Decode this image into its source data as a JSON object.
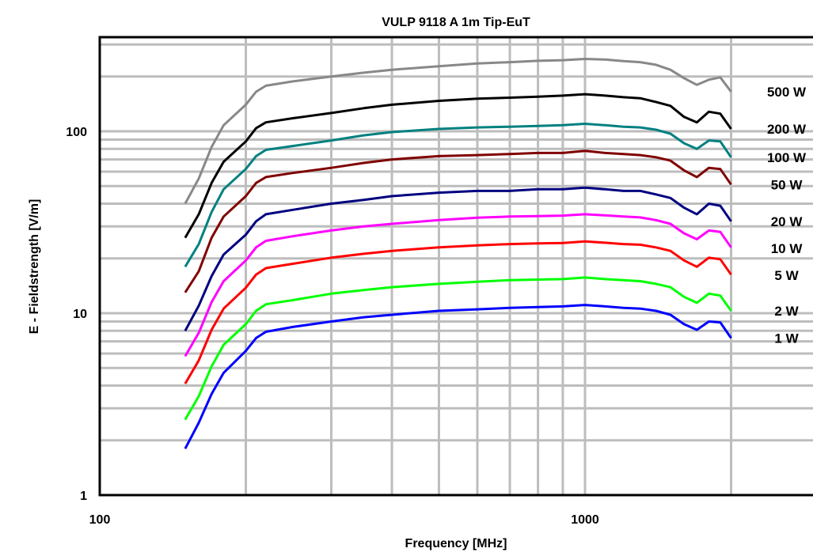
{
  "chart_data": {
    "type": "line",
    "title": "VULP 9118 A 1m Tip-EuT",
    "xlabel": "Frequency [MHz]",
    "ylabel": "E - Fieldstrength [V/m]",
    "x_scale": "log",
    "y_scale": "log",
    "xlim": [
      100,
      3000
    ],
    "ylim": [
      1,
      300
    ],
    "x_tick_labels": [
      "100",
      "1000"
    ],
    "y_tick_labels": [
      "1",
      "10",
      "100"
    ],
    "grid": true,
    "legend": "right, labels next to line ends",
    "x": [
      150,
      160,
      170,
      180,
      200,
      210,
      220,
      250,
      300,
      350,
      400,
      500,
      600,
      700,
      800,
      900,
      1000,
      1100,
      1200,
      1300,
      1400,
      1500,
      1600,
      1700,
      1800,
      1900,
      2000
    ],
    "series": [
      {
        "name": "500 W",
        "color": "#888888",
        "values": [
          40,
          55,
          82,
          108,
          140,
          165,
          178,
          188,
          200,
          210,
          218,
          228,
          236,
          240,
          244,
          246,
          250,
          248,
          243,
          240,
          232,
          218,
          196,
          180,
          192,
          198,
          165
        ]
      },
      {
        "name": "200 W",
        "color": "#000000",
        "values": [
          26,
          35,
          52,
          68,
          88,
          104,
          112,
          118,
          126,
          134,
          140,
          147,
          151,
          153,
          155,
          157,
          160,
          157,
          154,
          152,
          145,
          138,
          120,
          112,
          128,
          125,
          103
        ]
      },
      {
        "name": "100 W",
        "color": "#008080",
        "values": [
          18,
          24,
          36,
          48,
          62,
          73,
          79,
          83,
          89,
          95,
          99,
          103,
          105,
          106,
          107,
          108,
          110,
          108,
          106,
          105,
          102,
          97,
          86,
          80,
          89,
          88,
          72
        ]
      },
      {
        "name": "50 W",
        "color": "#800000",
        "values": [
          13,
          17,
          26,
          34,
          44,
          52,
          56,
          59,
          63,
          67,
          70,
          73,
          74,
          75,
          76,
          76,
          78,
          76,
          75,
          74,
          72,
          69,
          61,
          56,
          63,
          62,
          51
        ]
      },
      {
        "name": "20 W",
        "color": "#000080",
        "values": [
          8,
          11,
          16,
          21,
          27,
          32,
          35,
          37,
          40,
          42,
          44,
          46,
          47,
          47,
          48,
          48,
          49,
          48,
          47,
          47,
          45,
          43,
          38,
          35,
          40,
          39,
          32
        ]
      },
      {
        "name": "10 W",
        "color": "#ff00ff",
        "values": [
          5.8,
          7.8,
          11.5,
          15,
          19.5,
          23,
          25,
          26.5,
          28.5,
          30,
          31,
          32.5,
          33.5,
          34,
          34.2,
          34.4,
          35,
          34.5,
          34,
          33.6,
          32.5,
          31,
          27.5,
          25.5,
          28.5,
          28,
          23
        ]
      },
      {
        "name": "5 W",
        "color": "#ff0000",
        "values": [
          4.1,
          5.5,
          8.1,
          10.6,
          13.8,
          16.3,
          17.7,
          18.7,
          20.2,
          21.2,
          22,
          23,
          23.6,
          24,
          24.2,
          24.3,
          24.8,
          24.4,
          24,
          23.8,
          23,
          22,
          19.5,
          18,
          20.2,
          19.8,
          16.3
        ]
      },
      {
        "name": "2 W",
        "color": "#00ff00",
        "values": [
          2.6,
          3.5,
          5.1,
          6.7,
          8.7,
          10.3,
          11.2,
          11.8,
          12.8,
          13.4,
          13.9,
          14.5,
          14.9,
          15.2,
          15.3,
          15.4,
          15.7,
          15.4,
          15.2,
          15,
          14.5,
          13.9,
          12.3,
          11.4,
          12.8,
          12.5,
          10.3
        ]
      },
      {
        "name": "1 W",
        "color": "#0000ff",
        "values": [
          1.8,
          2.5,
          3.6,
          4.7,
          6.2,
          7.3,
          7.9,
          8.4,
          9,
          9.5,
          9.8,
          10.3,
          10.5,
          10.7,
          10.8,
          10.9,
          11.1,
          10.9,
          10.7,
          10.6,
          10.3,
          9.8,
          8.7,
          8.1,
          9,
          8.9,
          7.3
        ]
      }
    ]
  }
}
